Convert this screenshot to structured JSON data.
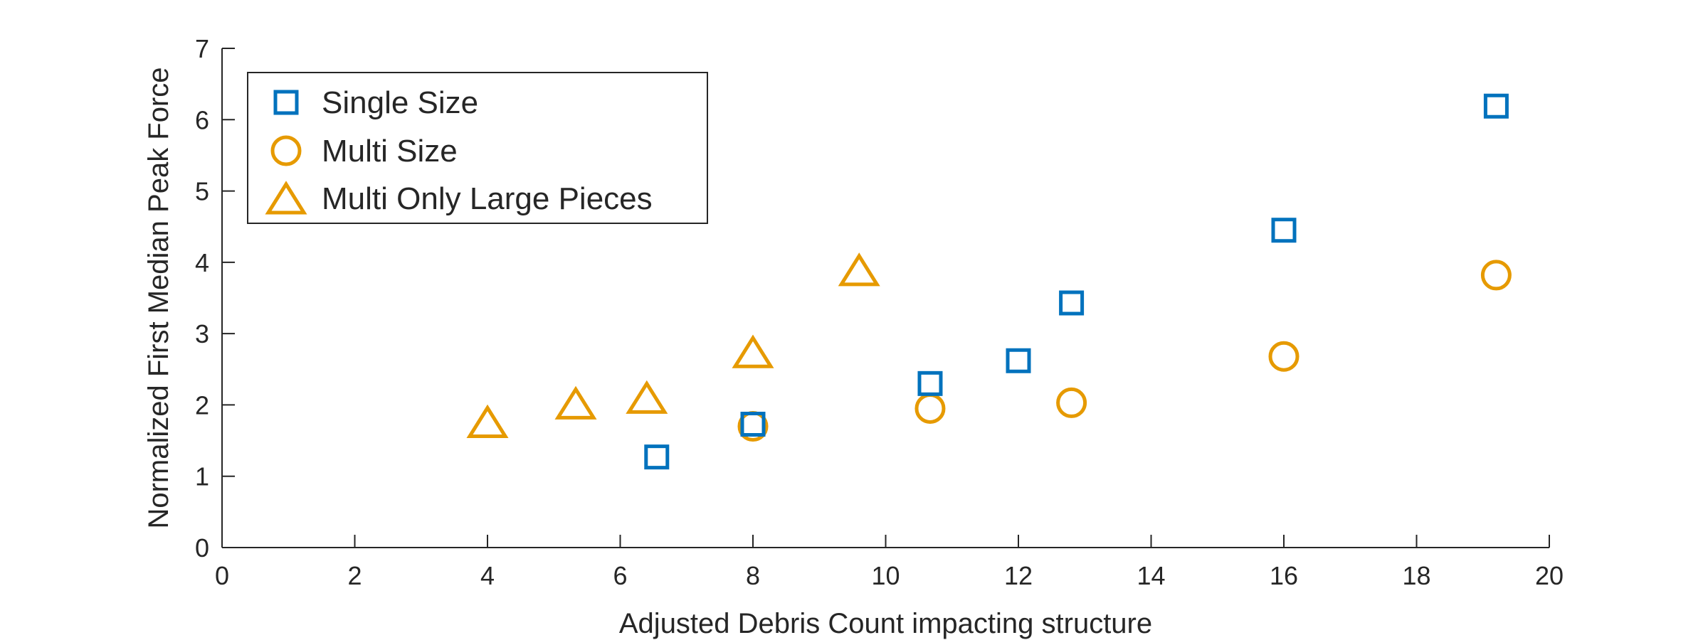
{
  "chart_data": {
    "type": "scatter",
    "xlabel": "Adjusted Debris Count impacting structure",
    "ylabel": "Normalized First Median Peak Force",
    "xlim": [
      0,
      20
    ],
    "ylim": [
      0,
      7
    ],
    "xticks": [
      0,
      2,
      4,
      6,
      8,
      10,
      12,
      14,
      16,
      18,
      20
    ],
    "yticks": [
      0,
      1,
      2,
      3,
      4,
      5,
      6,
      7
    ],
    "grid": false,
    "legend_position": "top-left",
    "series": [
      {
        "name": "Single Size",
        "marker": "square",
        "color": "#0072BD",
        "x": [
          6.55,
          8.0,
          10.67,
          12.0,
          12.8,
          16.0,
          19.2
        ],
        "y": [
          1.27,
          1.73,
          2.3,
          2.62,
          3.43,
          4.45,
          6.19
        ]
      },
      {
        "name": "Multi Size",
        "marker": "circle",
        "color": "#E69A00",
        "x": [
          8.0,
          10.67,
          12.8,
          16.0,
          19.2
        ],
        "y": [
          1.7,
          1.95,
          2.03,
          2.68,
          3.82
        ]
      },
      {
        "name": "Multi Only Large Pieces",
        "marker": "triangle",
        "color": "#E69A00",
        "x": [
          4.0,
          5.33,
          6.4,
          8.0,
          9.6
        ],
        "y": [
          1.72,
          1.98,
          2.06,
          2.7,
          3.85
        ]
      }
    ]
  }
}
